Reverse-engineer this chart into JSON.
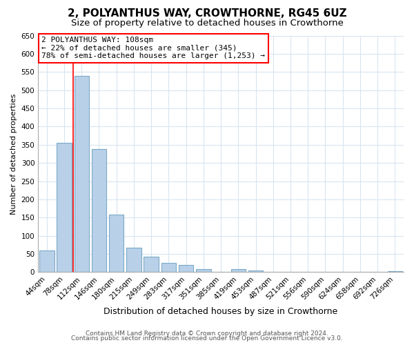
{
  "title": "2, POLYANTHUS WAY, CROWTHORNE, RG45 6UZ",
  "subtitle": "Size of property relative to detached houses in Crowthorne",
  "xlabel": "Distribution of detached houses by size in Crowthorne",
  "ylabel": "Number of detached properties",
  "bar_labels": [
    "44sqm",
    "78sqm",
    "112sqm",
    "146sqm",
    "180sqm",
    "215sqm",
    "249sqm",
    "283sqm",
    "317sqm",
    "351sqm",
    "385sqm",
    "419sqm",
    "453sqm",
    "487sqm",
    "521sqm",
    "556sqm",
    "590sqm",
    "624sqm",
    "658sqm",
    "692sqm",
    "726sqm"
  ],
  "bar_values": [
    60,
    355,
    540,
    338,
    158,
    68,
    42,
    25,
    20,
    8,
    0,
    8,
    4,
    1,
    0,
    1,
    0,
    0,
    0,
    0,
    2
  ],
  "bar_color": "#b8d0e8",
  "bar_edge_color": "#7aaac8",
  "red_line_x": 1.5,
  "ylim": [
    0,
    650
  ],
  "yticks": [
    0,
    50,
    100,
    150,
    200,
    250,
    300,
    350,
    400,
    450,
    500,
    550,
    600,
    650
  ],
  "annotation_title": "2 POLYANTHUS WAY: 108sqm",
  "annotation_line1": "← 22% of detached houses are smaller (345)",
  "annotation_line2": "78% of semi-detached houses are larger (1,253) →",
  "footer_line1": "Contains HM Land Registry data © Crown copyright and database right 2024.",
  "footer_line2": "Contains public sector information licensed under the Open Government Licence v3.0.",
  "background_color": "#ffffff",
  "grid_color": "#d8e4f0",
  "title_fontsize": 11,
  "subtitle_fontsize": 9.5,
  "xlabel_fontsize": 9,
  "ylabel_fontsize": 8,
  "tick_fontsize": 7.5,
  "annotation_fontsize": 8,
  "footer_fontsize": 6.5
}
